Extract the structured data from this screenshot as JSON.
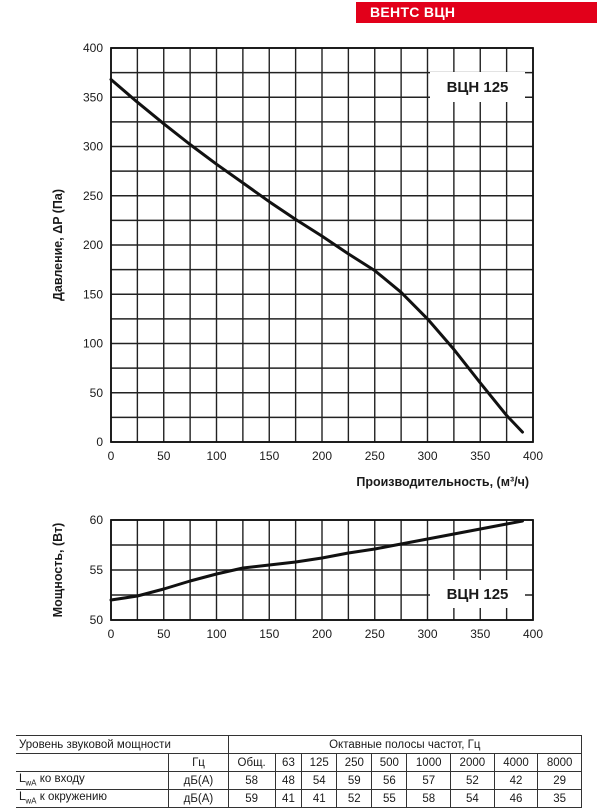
{
  "brand": "ВЕНТС ВЦН",
  "chart_data": [
    {
      "type": "line",
      "title": "",
      "xlabel": "Производительность, (м³/ч)",
      "ylabel": "Давление, ΔP (Па)",
      "xlim": [
        0,
        400
      ],
      "ylim": [
        0,
        400
      ],
      "x_ticks": [
        0,
        50,
        100,
        150,
        200,
        250,
        300,
        350,
        400
      ],
      "y_ticks": [
        0,
        50,
        100,
        150,
        200,
        250,
        300,
        350,
        400
      ],
      "grid": true,
      "annotation": "ВЦН 125",
      "series": [
        {
          "name": "ВЦН 125",
          "x": [
            0,
            25,
            50,
            75,
            100,
            125,
            150,
            175,
            200,
            225,
            250,
            275,
            300,
            325,
            350,
            375,
            390
          ],
          "y": [
            368,
            345,
            323,
            302,
            282,
            263,
            244,
            226,
            209,
            191,
            174,
            152,
            125,
            94,
            60,
            27,
            10
          ]
        }
      ]
    },
    {
      "type": "line",
      "title": "",
      "xlabel": "",
      "ylabel": "Мощность, (Вт)",
      "xlim": [
        0,
        400
      ],
      "ylim": [
        50,
        60
      ],
      "x_ticks": [
        0,
        50,
        100,
        150,
        200,
        250,
        300,
        350,
        400
      ],
      "y_ticks": [
        50,
        55,
        60
      ],
      "grid": true,
      "annotation": "ВЦН 125",
      "series": [
        {
          "name": "ВЦН 125",
          "x": [
            0,
            25,
            50,
            75,
            100,
            125,
            150,
            175,
            200,
            225,
            250,
            275,
            300,
            325,
            350,
            375,
            390
          ],
          "y": [
            52.0,
            52.4,
            53.1,
            53.9,
            54.6,
            55.2,
            55.5,
            55.8,
            56.2,
            56.7,
            57.1,
            57.6,
            58.1,
            58.6,
            59.1,
            59.6,
            59.9
          ]
        }
      ]
    }
  ],
  "sound_table": {
    "heading_left": "Уровень звуковой мощности",
    "heading_right": "Октавные полосы частот, Гц",
    "unit_row_label": "Гц",
    "columns": [
      "Общ.",
      "63",
      "125",
      "250",
      "500",
      "1000",
      "2000",
      "4000",
      "8000"
    ],
    "rows": [
      {
        "label_main": "L",
        "label_sub": "wA",
        "label_rest": " ко входу",
        "unit": "дБ(А)",
        "values": [
          "58",
          "48",
          "54",
          "59",
          "56",
          "57",
          "52",
          "42",
          "29"
        ]
      },
      {
        "label_main": "L",
        "label_sub": "wA",
        "label_rest": " к окружению",
        "unit": "дБ(А)",
        "values": [
          "59",
          "41",
          "41",
          "52",
          "55",
          "58",
          "54",
          "46",
          "35"
        ]
      }
    ]
  }
}
